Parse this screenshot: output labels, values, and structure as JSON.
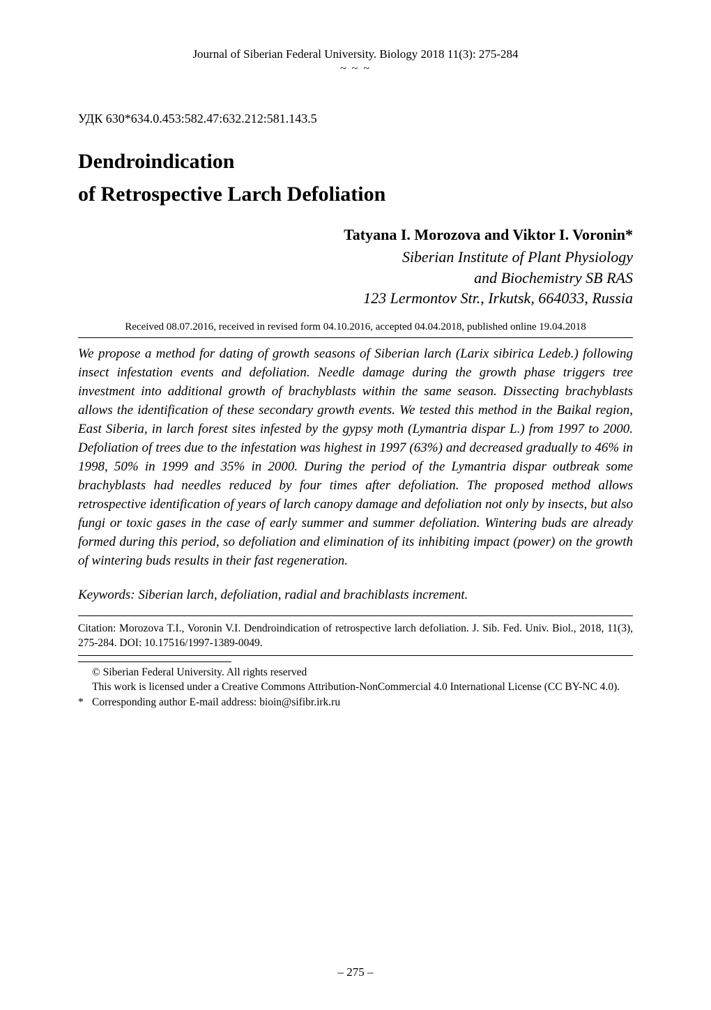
{
  "theme": {
    "text_color": "#000000",
    "background_color": "#ffffff",
    "rule_color": "#000000",
    "font_family": "Times New Roman",
    "body_fontsize_pt": 11,
    "title_fontsize_pt": 18,
    "author_fontsize_pt": 13,
    "affil_fontsize_pt": 13,
    "small_fontsize_pt": 9
  },
  "header": {
    "journal_line": "Journal of Siberian Federal University. Biology 2018 11(3): 275-284",
    "separator": "~ ~ ~"
  },
  "udk": "УДК 630*634.0.453:582.47:632.212:581.143.5",
  "title_line1": "Dendroindication",
  "title_line2": "of Retrospective Larch Defoliation",
  "authors": "Tatyana I. Morozova and Viktor I. Voronin*",
  "affiliation": {
    "line1": "Siberian Institute of Plant Physiology",
    "line2": "and Biochemistry SB RAS",
    "line3": "123 Lermontov Str., Irkutsk, 664033, Russia"
  },
  "received": "Received 08.07.2016, received in revised form 04.10.2016, accepted 04.04.2018, published online 19.04.2018",
  "abstract": "We propose a method for dating of growth seasons of Siberian larch (Larix sibirica Ledeb.) following insect infestation events and defoliation. Needle damage during the growth phase triggers tree investment into additional growth of brachyblasts within the same season. Dissecting brachyblasts allows the identification of these secondary growth events. We tested this method in the Baikal region, East Siberia, in larch forest sites infested by the gypsy moth (Lymantria dispar L.) from 1997 to 2000. Defoliation of trees due to the infestation was highest in 1997 (63%) and decreased gradually to 46% in 1998, 50% in 1999 and 35% in 2000. During the period of the Lymantria dispar outbreak some brachyblasts had needles reduced by four times after defoliation. The proposed method allows retrospective identification of years of larch canopy damage and defoliation not only by insects, but also fungi or toxic gases in the case of early summer and summer defoliation. Wintering buds are already formed during this period, so defoliation and elimination of its inhibiting impact (power) on the growth of wintering buds results in their fast regeneration.",
  "keywords": "Keywords: Siberian larch, defoliation, radial and brachiblasts increment.",
  "citation": "Citation: Morozova T.I., Voronin V.I. Dendroindication of retrospective larch defoliation. J. Sib. Fed. Univ. Biol., 2018, 11(3), 275-284. DOI: 10.17516/1997-1389-0049.",
  "footnotes": {
    "copyright": "© Siberian Federal University. All rights reserved",
    "license": "This work is licensed under a Creative Commons Attribution-NonCommercial 4.0 International License (CC BY-NC 4.0).",
    "corresponding_marker": "*",
    "corresponding": "Corresponding author E-mail address: bioin@sifibr.irk.ru"
  },
  "page_number": "– 275 –"
}
